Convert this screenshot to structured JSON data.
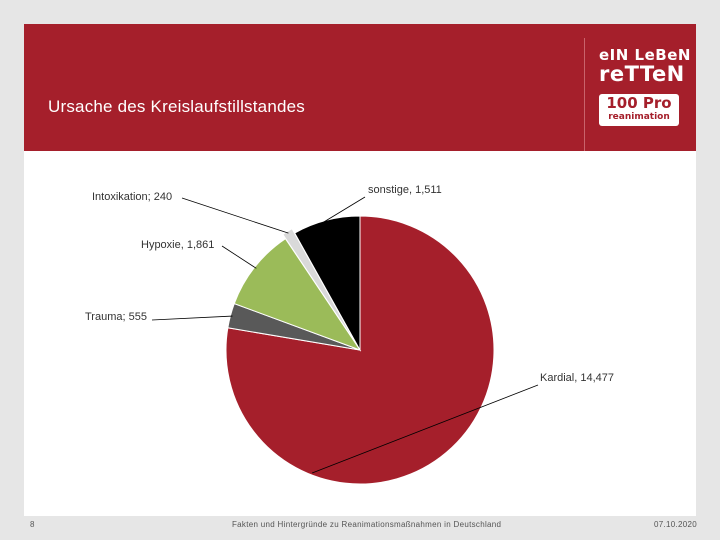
{
  "slide": {
    "title": "Ursache des Kreislaufstillstandes",
    "page_number": "8",
    "footer_text": "Fakten und Hintergründe zu Reanimationsmaßnahmen in Deutschland",
    "date": "07.10.2020"
  },
  "logo": {
    "line1": "eIN LeBeN",
    "line2": "reTTeN",
    "badge_top": "100 Pro",
    "badge_bottom": "reanimation"
  },
  "colors": {
    "brand": "#a51f2b",
    "kardial": "#a51f2b",
    "trauma": "#595959",
    "hypoxie": "#9bbb59",
    "intoxikation": "#d9d9d9",
    "sonstige": "#000000"
  },
  "chart_data": {
    "type": "pie",
    "title": "",
    "unit": "cases",
    "start": "12 o'clock, clockwise",
    "slices": [
      {
        "name": "Kardial",
        "value": 14477,
        "label": "Kardial, 14,477",
        "color": "#a51f2b"
      },
      {
        "name": "Trauma",
        "value": 555,
        "label": "Trauma; 555",
        "color": "#595959"
      },
      {
        "name": "Hypoxie",
        "value": 1861,
        "label": "Hypoxie, 1,861",
        "color": "#9bbb59"
      },
      {
        "name": "Intoxikation",
        "value": 240,
        "label": "Intoxikation; 240",
        "color": "#d9d9d9"
      },
      {
        "name": "sonstige",
        "value": 1511,
        "label": "sonstige, 1,511",
        "color": "#000000"
      }
    ]
  }
}
